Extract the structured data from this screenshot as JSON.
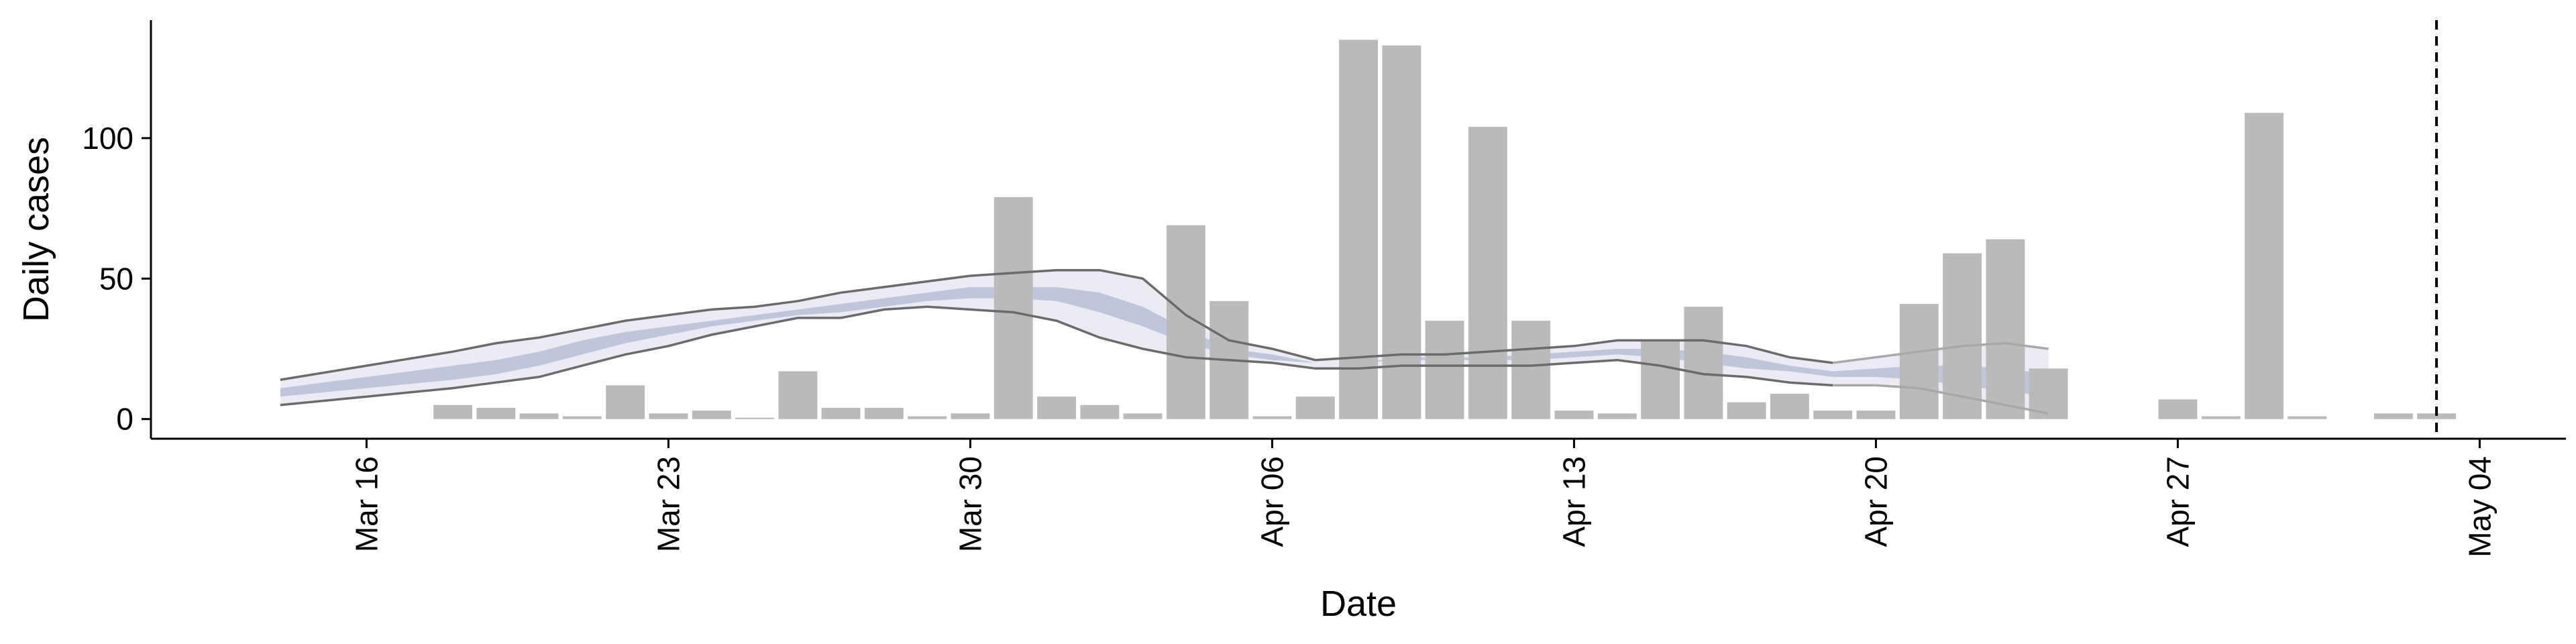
{
  "chart_data": {
    "type": "bar",
    "title": "",
    "xlabel": "Date",
    "ylabel": "Daily cases",
    "ylim": [
      -7,
      142
    ],
    "xlim": [
      "2020-03-11",
      "2020-05-06"
    ],
    "y_ticks": [
      0,
      50,
      100
    ],
    "x_ticks": [
      {
        "date": "2020-03-16",
        "label": "Mar 16"
      },
      {
        "date": "2020-03-23",
        "label": "Mar 23"
      },
      {
        "date": "2020-03-30",
        "label": "Mar 30"
      },
      {
        "date": "2020-04-06",
        "label": "Apr 06"
      },
      {
        "date": "2020-04-13",
        "label": "Apr 13"
      },
      {
        "date": "2020-04-20",
        "label": "Apr 20"
      },
      {
        "date": "2020-04-27",
        "label": "Apr 27"
      },
      {
        "date": "2020-05-04",
        "label": "May 04"
      }
    ],
    "grid": false,
    "bars": {
      "color": "#bababa",
      "dates": [
        "2020-03-18",
        "2020-03-19",
        "2020-03-20",
        "2020-03-21",
        "2020-03-22",
        "2020-03-23",
        "2020-03-24",
        "2020-03-25",
        "2020-03-26",
        "2020-03-27",
        "2020-03-28",
        "2020-03-29",
        "2020-03-30",
        "2020-03-31",
        "2020-04-01",
        "2020-04-02",
        "2020-04-03",
        "2020-04-04",
        "2020-04-05",
        "2020-04-06",
        "2020-04-07",
        "2020-04-08",
        "2020-04-09",
        "2020-04-10",
        "2020-04-11",
        "2020-04-12",
        "2020-04-13",
        "2020-04-14",
        "2020-04-15",
        "2020-04-16",
        "2020-04-17",
        "2020-04-18",
        "2020-04-19",
        "2020-04-20",
        "2020-04-21",
        "2020-04-22",
        "2020-04-23",
        "2020-04-24",
        "2020-04-27",
        "2020-04-28",
        "2020-04-29",
        "2020-04-30",
        "2020-05-02",
        "2020-05-03"
      ],
      "values": [
        5,
        4,
        2,
        1,
        12,
        2,
        3,
        0,
        17,
        4,
        4,
        1,
        2,
        79,
        8,
        5,
        2,
        69,
        42,
        1,
        8,
        135,
        133,
        35,
        104,
        35,
        3,
        2,
        28,
        40,
        6,
        9,
        3,
        3,
        41,
        59,
        64,
        18,
        7,
        1,
        109,
        1,
        2,
        2
      ]
    },
    "bands": [
      {
        "level": "outer",
        "color": "#e6e8f1",
        "dates": [
          "2020-03-14",
          "2020-03-16",
          "2020-03-18",
          "2020-03-19",
          "2020-03-20",
          "2020-03-21",
          "2020-03-22",
          "2020-03-23",
          "2020-03-24",
          "2020-03-25",
          "2020-03-26",
          "2020-03-27",
          "2020-03-28",
          "2020-03-29",
          "2020-03-30",
          "2020-03-31",
          "2020-04-01",
          "2020-04-02",
          "2020-04-03",
          "2020-04-04",
          "2020-04-05",
          "2020-04-06",
          "2020-04-07",
          "2020-04-08",
          "2020-04-09",
          "2020-04-10",
          "2020-04-11",
          "2020-04-12",
          "2020-04-13",
          "2020-04-14",
          "2020-04-15",
          "2020-04-16",
          "2020-04-17",
          "2020-04-18",
          "2020-04-19",
          "2020-04-20",
          "2020-04-21",
          "2020-04-22",
          "2020-04-23",
          "2020-04-24"
        ],
        "lower": [
          5,
          8,
          11,
          13,
          15,
          19,
          23,
          26,
          30,
          33,
          36,
          36,
          39,
          40,
          39,
          38,
          35,
          29,
          25,
          22,
          21,
          20,
          18,
          18,
          19,
          19,
          19,
          19,
          20,
          21,
          19,
          16,
          15,
          13,
          12,
          12,
          11,
          8,
          5,
          2
        ],
        "upper": [
          14,
          19,
          24,
          27,
          29,
          32,
          35,
          37,
          39,
          40,
          42,
          45,
          47,
          49,
          51,
          52,
          53,
          53,
          50,
          37,
          28,
          25,
          21,
          22,
          23,
          23,
          24,
          25,
          26,
          28,
          28,
          28,
          26,
          22,
          20,
          22,
          24,
          26,
          27,
          25
        ]
      },
      {
        "level": "inner",
        "color": "#b7bfd6",
        "dates": [
          "2020-03-14",
          "2020-03-16",
          "2020-03-18",
          "2020-03-19",
          "2020-03-20",
          "2020-03-21",
          "2020-03-22",
          "2020-03-23",
          "2020-03-24",
          "2020-03-25",
          "2020-03-26",
          "2020-03-27",
          "2020-03-28",
          "2020-03-29",
          "2020-03-30",
          "2020-03-31",
          "2020-04-01",
          "2020-04-02",
          "2020-04-03",
          "2020-04-04",
          "2020-04-05",
          "2020-04-06",
          "2020-04-07",
          "2020-04-08",
          "2020-04-09",
          "2020-04-10",
          "2020-04-11",
          "2020-04-12",
          "2020-04-13",
          "2020-04-14",
          "2020-04-15",
          "2020-04-16",
          "2020-04-17",
          "2020-04-18",
          "2020-04-19",
          "2020-04-20",
          "2020-04-21",
          "2020-04-22",
          "2020-04-23",
          "2020-04-24"
        ],
        "lower": [
          8,
          11,
          14,
          16,
          19,
          23,
          27,
          30,
          33,
          35,
          37,
          38,
          40,
          42,
          43,
          43,
          42,
          38,
          33,
          27,
          23,
          21,
          20,
          20,
          21,
          21,
          21,
          21,
          22,
          23,
          22,
          20,
          18,
          17,
          15,
          15,
          14,
          12,
          10,
          8
        ],
        "upper": [
          11,
          15,
          19,
          21,
          24,
          28,
          31,
          33,
          35,
          37,
          39,
          41,
          43,
          45,
          47,
          47,
          47,
          45,
          40,
          32,
          25,
          23,
          20,
          20,
          22,
          22,
          22,
          23,
          24,
          25,
          25,
          24,
          22,
          19,
          17,
          18,
          19,
          19,
          18,
          16
        ]
      }
    ],
    "bound_lines": [
      {
        "dates": [
          "2020-03-14",
          "2020-03-16",
          "2020-03-18",
          "2020-03-19",
          "2020-03-20",
          "2020-03-21",
          "2020-03-22",
          "2020-03-23",
          "2020-03-24",
          "2020-03-25",
          "2020-03-26",
          "2020-03-27",
          "2020-03-28",
          "2020-03-29",
          "2020-03-30",
          "2020-03-31",
          "2020-04-01",
          "2020-04-02",
          "2020-04-03",
          "2020-04-04",
          "2020-04-05",
          "2020-04-06",
          "2020-04-07",
          "2020-04-08",
          "2020-04-09",
          "2020-04-10",
          "2020-04-11",
          "2020-04-12",
          "2020-04-13",
          "2020-04-14",
          "2020-04-15",
          "2020-04-16",
          "2020-04-17",
          "2020-04-18",
          "2020-04-19",
          "2020-04-20",
          "2020-04-21",
          "2020-04-22",
          "2020-04-23",
          "2020-04-24"
        ],
        "values": [
          5,
          8,
          11,
          13,
          15,
          19,
          23,
          26,
          30,
          33,
          36,
          36,
          39,
          40,
          39,
          38,
          35,
          29,
          25,
          22,
          21,
          20,
          18,
          18,
          19,
          19,
          19,
          19,
          20,
          21,
          19,
          16,
          15,
          13,
          12,
          12,
          11,
          8,
          5,
          2
        ]
      },
      {
        "dates": [
          "2020-03-14",
          "2020-03-16",
          "2020-03-18",
          "2020-03-19",
          "2020-03-20",
          "2020-03-21",
          "2020-03-22",
          "2020-03-23",
          "2020-03-24",
          "2020-03-25",
          "2020-03-26",
          "2020-03-27",
          "2020-03-28",
          "2020-03-29",
          "2020-03-30",
          "2020-03-31",
          "2020-04-01",
          "2020-04-02",
          "2020-04-03",
          "2020-04-04",
          "2020-04-05",
          "2020-04-06",
          "2020-04-07",
          "2020-04-08",
          "2020-04-09",
          "2020-04-10",
          "2020-04-11",
          "2020-04-12",
          "2020-04-13",
          "2020-04-14",
          "2020-04-15",
          "2020-04-16",
          "2020-04-17",
          "2020-04-18",
          "2020-04-19",
          "2020-04-20",
          "2020-04-21",
          "2020-04-22",
          "2020-04-23",
          "2020-04-24"
        ],
        "values": [
          14,
          19,
          24,
          27,
          29,
          32,
          35,
          37,
          39,
          40,
          42,
          45,
          47,
          49,
          51,
          52,
          53,
          53,
          50,
          37,
          28,
          25,
          21,
          22,
          23,
          23,
          24,
          25,
          26,
          28,
          28,
          28,
          26,
          22,
          20,
          22,
          24,
          26,
          27,
          25
        ]
      }
    ],
    "reference_line": {
      "date": "2020-05-03",
      "style": "dashed",
      "color": "#000000"
    }
  }
}
